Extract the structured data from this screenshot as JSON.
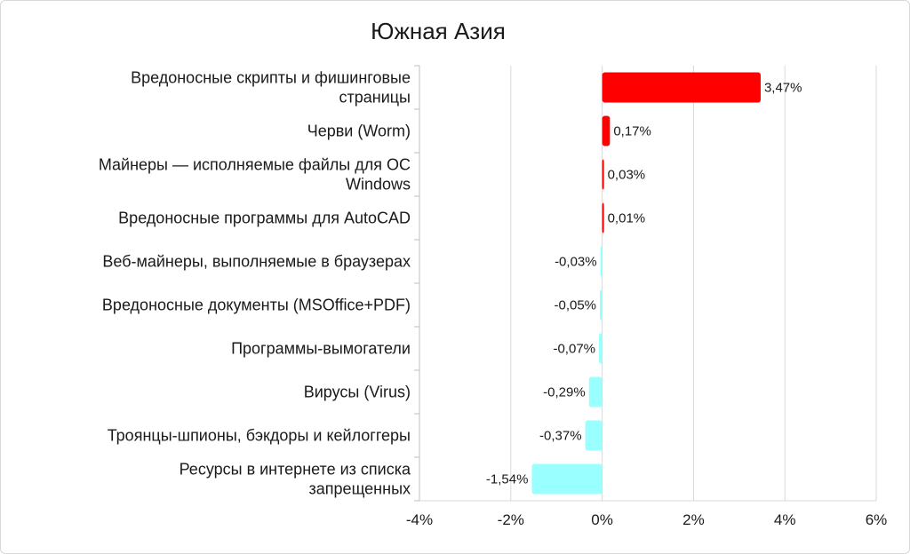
{
  "chart_data": {
    "type": "bar",
    "orientation": "horizontal",
    "title": "Южная Азия",
    "xlim": [
      -4,
      6
    ],
    "x_ticks": [
      "-4%",
      "-2%",
      "0%",
      "2%",
      "4%",
      "6%"
    ],
    "grid": true,
    "categories": [
      [
        "Вредоносные скрипты и фишинговые",
        "страницы"
      ],
      [
        "Черви (Worm)"
      ],
      [
        "Майнеры — исполняемые файлы для ОС",
        "Windows"
      ],
      [
        "Вредоносные программы для AutoCAD"
      ],
      [
        "Веб-майнеры, выполняемые в браузерах"
      ],
      [
        "Вредоносные документы (MSOffice+PDF)"
      ],
      [
        "Программы-вымогатели"
      ],
      [
        "Вирусы (Virus)"
      ],
      [
        "Троянцы-шпионы, бэкдоры и кейлоггеры"
      ],
      [
        "Ресурсы в интернете из списка",
        "запрещенных"
      ]
    ],
    "values": [
      3.47,
      0.17,
      0.03,
      0.01,
      -0.03,
      -0.05,
      -0.07,
      -0.29,
      -0.37,
      -1.54
    ],
    "value_labels": [
      "3,47%",
      "0,17%",
      "0,03%",
      "0,01%",
      "-0,03%",
      "-0,05%",
      "-0,07%",
      "-0,29%",
      "-0,37%",
      "-1,54%"
    ],
    "colors": {
      "positive": "#ff0000",
      "negative": "#99ffff",
      "grid": "#d9d9d9",
      "axis": "#bfbfbf"
    }
  }
}
